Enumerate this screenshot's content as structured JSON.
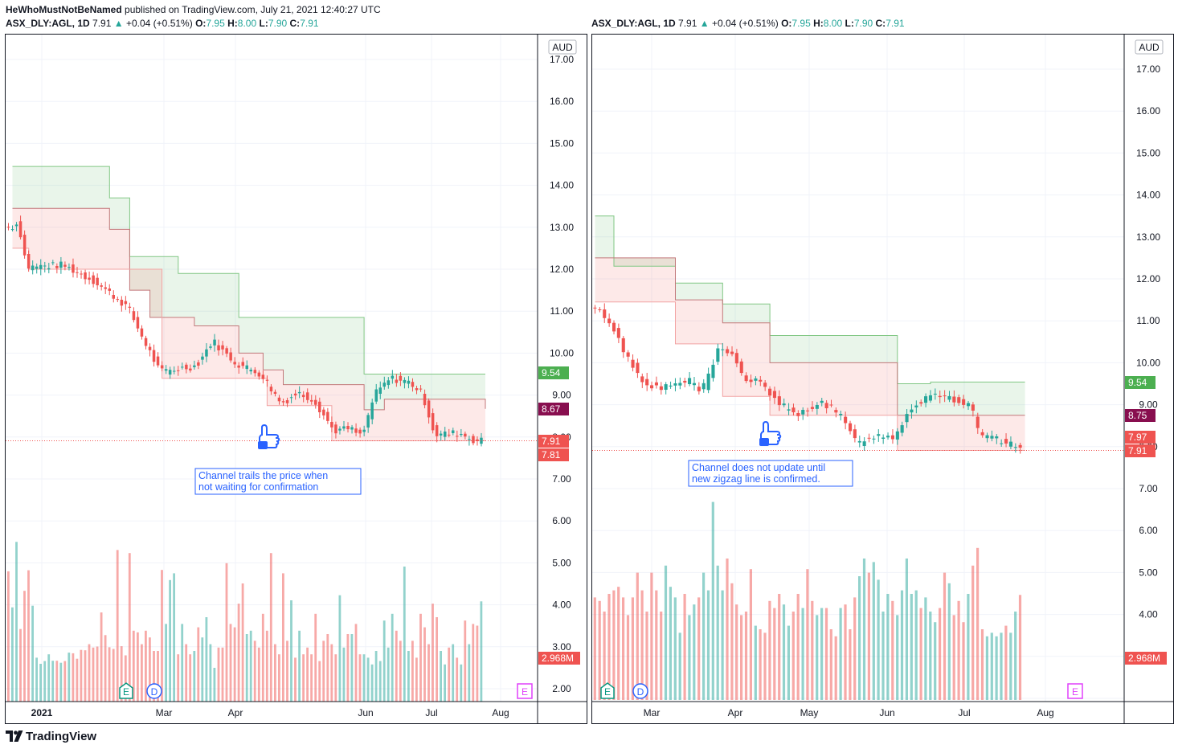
{
  "header": {
    "author": "HeWhoMustNotBeNamed",
    "published": "published on TradingView.com, July 21, 2021 12:40:27 UTC"
  },
  "brand": "TradingView",
  "chart_data": [
    {
      "type": "candlestick",
      "symbol": "ASX_DLY:AGL, 1D",
      "last": "7.91",
      "change": "+0.04 (+0.51%)",
      "ohlc": {
        "O": "7.95",
        "H": "8.00",
        "L": "7.90",
        "C": "7.91"
      },
      "currency": "AUD",
      "y_ticks": [
        "17.00",
        "16.00",
        "15.00",
        "14.00",
        "13.00",
        "12.00",
        "11.00",
        "10.00",
        "9.00",
        "8.00",
        "7.00",
        "6.00",
        "5.00",
        "4.00",
        "3.00",
        "2.00"
      ],
      "x_ticks": [
        "2021",
        "Mar",
        "Apr",
        "Jun",
        "Jul",
        "Aug"
      ],
      "price_labels": [
        {
          "text": "9.54",
          "color": "#4caf50"
        },
        {
          "text": "8.67",
          "color": "#880e4f"
        },
        {
          "text": "7.91",
          "color": "#ef5350"
        },
        {
          "text": "7.81",
          "color": "#ef5350"
        },
        {
          "text": "2.968M",
          "color": "#ef5350"
        }
      ],
      "annotation": [
        "Channel trails the price when",
        "not waiting for confirmation"
      ],
      "events": [
        "E",
        "D",
        "E"
      ],
      "ylim": [
        1.8,
        17.3
      ],
      "upper_channel": [
        [
          1,
          14.45
        ],
        [
          25,
          14.45
        ],
        [
          25,
          13.7
        ],
        [
          30,
          13.7
        ],
        [
          30,
          12.3
        ],
        [
          42,
          12.3
        ],
        [
          42,
          11.9
        ],
        [
          57,
          11.9
        ],
        [
          57,
          10.85
        ],
        [
          88,
          10.85
        ],
        [
          88,
          9.5
        ],
        [
          118,
          9.5
        ]
      ],
      "mid_channel": [
        [
          1,
          13.45
        ],
        [
          25,
          13.45
        ],
        [
          25,
          12.95
        ],
        [
          30,
          12.95
        ],
        [
          30,
          11.5
        ],
        [
          35,
          11.5
        ],
        [
          35,
          10.85
        ],
        [
          46,
          10.85
        ],
        [
          46,
          10.65
        ],
        [
          57,
          10.65
        ],
        [
          57,
          10.0
        ],
        [
          63,
          10.0
        ],
        [
          63,
          9.6
        ],
        [
          68,
          9.6
        ],
        [
          68,
          9.25
        ],
        [
          88,
          9.25
        ],
        [
          88,
          8.65
        ],
        [
          93,
          8.65
        ],
        [
          93,
          8.9
        ],
        [
          118,
          8.9
        ],
        [
          118,
          8.67
        ]
      ],
      "lower_channel": [
        [
          1,
          12.5
        ],
        [
          5,
          12.5
        ],
        [
          5,
          12.0
        ],
        [
          38,
          12.0
        ],
        [
          38,
          9.4
        ],
        [
          64,
          9.4
        ],
        [
          64,
          8.75
        ],
        [
          80,
          8.75
        ],
        [
          80,
          7.91
        ],
        [
          118,
          7.91
        ]
      ],
      "candle_trend": [
        [
          1,
          13.0
        ],
        [
          3,
          13.1
        ],
        [
          5,
          12.05
        ],
        [
          14,
          12.1
        ],
        [
          22,
          11.7
        ],
        [
          30,
          11.1
        ],
        [
          33,
          10.5
        ],
        [
          38,
          9.55
        ],
        [
          47,
          9.7
        ],
        [
          51,
          10.3
        ],
        [
          54,
          10.0
        ],
        [
          57,
          9.75
        ],
        [
          63,
          9.5
        ],
        [
          68,
          8.8
        ],
        [
          72,
          9.05
        ],
        [
          76,
          8.9
        ],
        [
          81,
          8.15
        ],
        [
          85,
          8.2
        ],
        [
          88,
          8.0
        ],
        [
          91,
          9.0
        ],
        [
          95,
          9.4
        ],
        [
          100,
          9.3
        ],
        [
          103,
          9.0
        ],
        [
          106,
          8.05
        ],
        [
          112,
          8.1
        ],
        [
          116,
          7.91
        ]
      ],
      "volume_millions": [
        3.86,
        2.79,
        4.73,
        2.15,
        3.28,
        3.89,
        2.84,
        1.3,
        1.12,
        1.2,
        1.4,
        1.21,
        1.21,
        1.15,
        1.2,
        1.45,
        1.43,
        1.27,
        1.53,
        1.52,
        1.7,
        1.6,
        1.63,
        2.64,
        1.97,
        1.61,
        1.56,
        4.49,
        1.64,
        1.37,
        4.4,
        2.1,
        2.05,
        1.7,
        2.1,
        1.9,
        1.5,
        1.5,
        3.9,
        2.3,
        3.6,
        3.8,
        1.4,
        2.3,
        1.7,
        1.4,
        1.5,
        2.2,
        1.9,
        2.5,
        1.7,
        1.0,
        1.6,
        1.6,
        4.1,
        2.3,
        2.2,
        2.9,
        3.5,
        2.0,
        2.1,
        1.8,
        1.6,
        2.6,
        2.1,
        4.4,
        1.7,
        1.4,
        3.8,
        1.8,
        3.0,
        1.3,
        2.1,
        1.4,
        1.6,
        1.4,
        2.6,
        1.2,
        1.8,
        2.0,
        1.7,
        1.4,
        3.15,
        1.6,
        2.0,
        2.0,
        2.3,
        1.4,
        1.4,
        1.3,
        1.1,
        1.5,
        1.2,
        2.4,
        1.6,
        2.6,
        2.1,
        1.8,
        4.0,
        1.5,
        1.8,
        1.3,
        2.6,
        2.2,
        1.7,
        2.9,
        2.5,
        1.5,
        1.1,
        1.6,
        1.7,
        1.3,
        1.1,
        2.4,
        1.7,
        2.3,
        2.25,
        2.97
      ]
    },
    {
      "type": "candlestick",
      "symbol": "ASX_DLY:AGL, 1D",
      "last": "7.91",
      "change": "+0.04 (+0.51%)",
      "ohlc": {
        "O": "7.95",
        "H": "8.00",
        "L": "7.90",
        "C": "7.91"
      },
      "currency": "AUD",
      "y_ticks": [
        "17.00",
        "16.00",
        "15.00",
        "14.00",
        "13.00",
        "12.00",
        "11.00",
        "10.00",
        "9.00",
        "8.00",
        "7.00",
        "6.00",
        "5.00",
        "4.00",
        "3.00",
        "2.00"
      ],
      "x_ticks": [
        "Mar",
        "Apr",
        "May",
        "Jun",
        "Jul",
        "Aug"
      ],
      "price_labels": [
        {
          "text": "9.54",
          "color": "#4caf50"
        },
        {
          "text": "8.75",
          "color": "#880e4f"
        },
        {
          "text": "7.97",
          "color": "#ef5350"
        },
        {
          "text": "7.91",
          "color": "#ef5350"
        },
        {
          "text": "2.968M",
          "color": "#ef5350"
        }
      ],
      "annotation": [
        "Channel does not update until",
        "new zigzag line is confirmed."
      ],
      "events": [
        "E",
        "D",
        "E"
      ],
      "ylim": [
        1.8,
        17.3
      ],
      "upper_channel": [
        [
          0,
          13.5
        ],
        [
          4,
          13.5
        ],
        [
          4,
          12.3
        ],
        [
          17,
          12.3
        ],
        [
          17,
          11.9
        ],
        [
          27,
          11.9
        ],
        [
          27,
          11.4
        ],
        [
          37,
          11.4
        ],
        [
          37,
          10.65
        ],
        [
          64,
          10.65
        ],
        [
          64,
          9.5
        ],
        [
          71,
          9.5
        ],
        [
          71,
          9.54
        ],
        [
          91,
          9.54
        ]
      ],
      "mid_channel": [
        [
          0,
          12.5
        ],
        [
          17,
          12.5
        ],
        [
          17,
          11.5
        ],
        [
          27,
          11.5
        ],
        [
          27,
          10.95
        ],
        [
          37,
          10.95
        ],
        [
          37,
          10.0
        ],
        [
          64,
          10.0
        ],
        [
          64,
          8.75
        ],
        [
          91,
          8.75
        ]
      ],
      "lower_channel": [
        [
          0,
          11.45
        ],
        [
          17,
          11.45
        ],
        [
          17,
          10.45
        ],
        [
          27,
          10.45
        ],
        [
          27,
          9.2
        ],
        [
          37,
          9.2
        ],
        [
          37,
          8.75
        ],
        [
          64,
          8.75
        ],
        [
          64,
          7.91
        ],
        [
          91,
          7.91
        ]
      ],
      "candle_trend": [
        [
          0,
          11.3
        ],
        [
          3,
          11.1
        ],
        [
          5,
          10.65
        ],
        [
          8,
          10.0
        ],
        [
          10,
          9.65
        ],
        [
          14,
          9.35
        ],
        [
          20,
          9.6
        ],
        [
          23,
          9.3
        ],
        [
          25,
          9.85
        ],
        [
          27,
          10.45
        ],
        [
          30,
          10.1
        ],
        [
          32,
          9.6
        ],
        [
          35,
          9.55
        ],
        [
          40,
          9.0
        ],
        [
          43,
          8.7
        ],
        [
          48,
          9.1
        ],
        [
          52,
          8.8
        ],
        [
          56,
          8.05
        ],
        [
          58,
          8.25
        ],
        [
          64,
          8.25
        ],
        [
          67,
          8.9
        ],
        [
          72,
          9.3
        ],
        [
          76,
          9.15
        ],
        [
          80,
          8.95
        ],
        [
          82,
          8.25
        ],
        [
          86,
          8.15
        ],
        [
          91,
          7.91
        ]
      ],
      "volume_millions": [
        2.9,
        2.8,
        2.5,
        3.0,
        3.1,
        3.2,
        2.9,
        2.4,
        2.9,
        3.6,
        3.1,
        2.5,
        3.6,
        3.1,
        2.5,
        3.8,
        3.2,
        2.9,
        1.9,
        3.0,
        2.4,
        2.7,
        2.9,
        3.6,
        3.1,
        5.6,
        3.8,
        3.1,
        4.0,
        3.3,
        2.7,
        2.4,
        2.5,
        3.7,
        2.1,
        2.0,
        1.9,
        2.8,
        2.6,
        3.0,
        2.7,
        2.1,
        2.5,
        3.0,
        2.6,
        3.7,
        2.8,
        2.4,
        2.6,
        2.6,
        2.0,
        1.8,
        2.6,
        2.7,
        2.0,
        2.9,
        3.5,
        4.0,
        3.6,
        3.9,
        3.4,
        2.5,
        3.0,
        2.8,
        2.4,
        3.1,
        4.0,
        3.0,
        3.1,
        2.6,
        2.9,
        2.5,
        2.2,
        2.6,
        3.6,
        3.3,
        2.4,
        2.8,
        2.2,
        3.0,
        3.8,
        4.3,
        2.0,
        1.8,
        1.9,
        1.8,
        1.9,
        2.1,
        1.9,
        2.5,
        2.97
      ]
    }
  ]
}
